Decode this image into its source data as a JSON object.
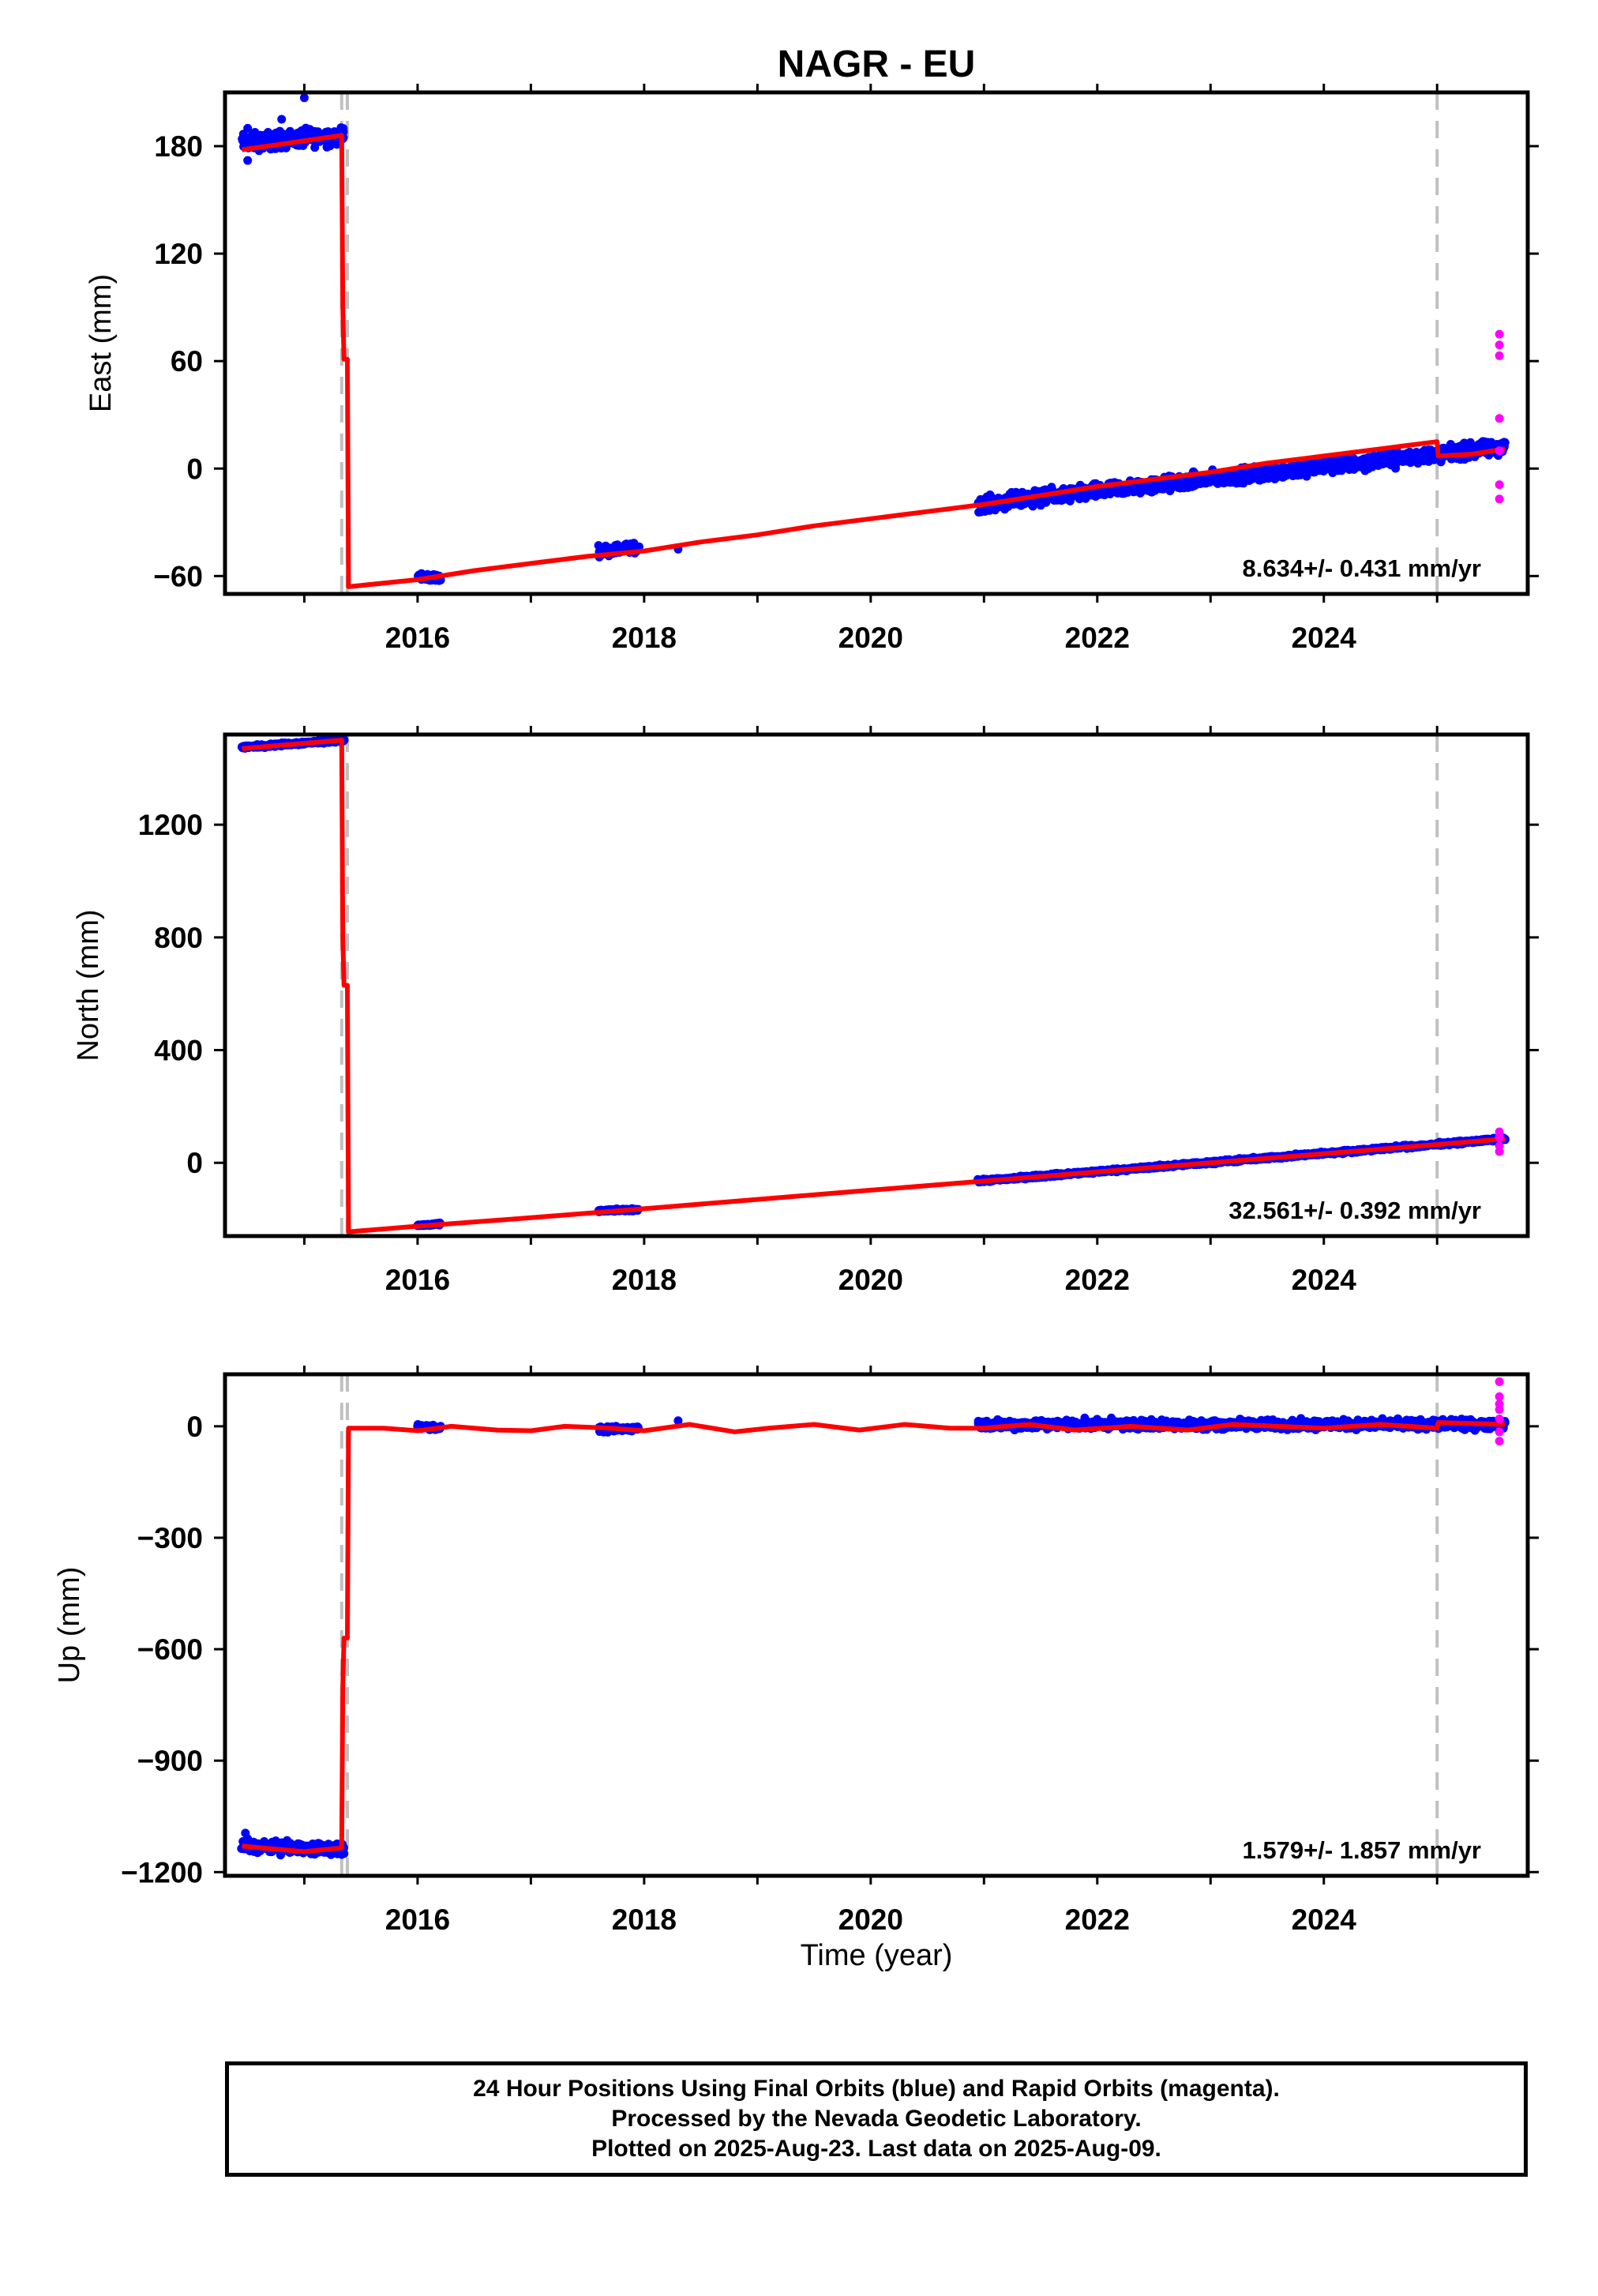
{
  "title": "NAGR - EU",
  "colors": {
    "final_orbits": "#0000ff",
    "rapid_orbits": "#ff00ff",
    "model": "#ff0000",
    "event_line": "#c0c0c0",
    "frame": "#000000"
  },
  "footer": {
    "line1": "24 Hour Positions Using Final Orbits (blue) and Rapid Orbits (magenta).",
    "line2": "Processed by the Nevada Geodetic Laboratory.",
    "line3": "Plotted on 2025-Aug-23. Last data on 2025-Aug-09."
  },
  "chart_data": [
    {
      "type": "scatter",
      "ylabel": "East (mm)",
      "xlim": [
        2014.3,
        2025.8
      ],
      "ylim": [
        -70,
        210
      ],
      "xticks": [
        2016,
        2018,
        2020,
        2022,
        2024
      ],
      "yticks": [
        -60,
        0,
        60,
        120,
        180
      ],
      "ytick_labels": [
        "−60",
        "0",
        "60",
        "120",
        "180"
      ],
      "rate_label": "8.634+/- 0.431 mm/yr",
      "event_lines": [
        2015.33,
        2015.38,
        2025.0
      ],
      "series": [
        {
          "style": "final_orbits",
          "clusters": [
            {
              "x": [
                2014.45,
                2015.35
              ],
              "y": [
                182,
                186
              ],
              "spread": 7
            },
            {
              "x": [
                2016.0,
                2016.2
              ],
              "y": [
                -60,
                -61
              ],
              "spread": 3
            },
            {
              "x": [
                2017.6,
                2017.95
              ],
              "y": [
                -46,
                -44
              ],
              "spread": 4
            },
            {
              "x": [
                2020.95,
                2025.6
              ],
              "y": [
                -20,
                12
              ],
              "spread": 6
            }
          ],
          "outliers": [
            {
              "x": 2014.5,
              "y": 190
            },
            {
              "x": 2014.5,
              "y": 172
            },
            {
              "x": 2015.0,
              "y": 207
            },
            {
              "x": 2014.8,
              "y": 195
            },
            {
              "x": 2018.3,
              "y": -45
            }
          ]
        },
        {
          "style": "rapid_orbits",
          "points": [
            {
              "x": 2025.55,
              "y": 75
            },
            {
              "x": 2025.55,
              "y": 69
            },
            {
              "x": 2025.55,
              "y": 63
            },
            {
              "x": 2025.55,
              "y": 28
            },
            {
              "x": 2025.55,
              "y": 10
            },
            {
              "x": 2025.55,
              "y": -9
            },
            {
              "x": 2025.55,
              "y": -17
            }
          ]
        },
        {
          "style": "model",
          "line": [
            [
              2014.45,
              178
            ],
            [
              2015.33,
              186
            ],
            [
              2015.34,
              90
            ],
            [
              2015.35,
              61
            ],
            [
              2015.38,
              61
            ],
            [
              2015.39,
              -66
            ],
            [
              2016.0,
              -62
            ],
            [
              2016.5,
              -57
            ],
            [
              2017.0,
              -53
            ],
            [
              2017.5,
              -49
            ],
            [
              2018.0,
              -46
            ],
            [
              2018.5,
              -41
            ],
            [
              2019.0,
              -37
            ],
            [
              2019.5,
              -32
            ],
            [
              2020.0,
              -28
            ],
            [
              2020.5,
              -24
            ],
            [
              2021.0,
              -20
            ],
            [
              2021.5,
              -15
            ],
            [
              2022.0,
              -10
            ],
            [
              2022.5,
              -6
            ],
            [
              2023.0,
              -2
            ],
            [
              2023.5,
              3
            ],
            [
              2024.0,
              7
            ],
            [
              2024.5,
              11
            ],
            [
              2025.0,
              15
            ],
            [
              2025.01,
              7
            ],
            [
              2025.3,
              8
            ],
            [
              2025.6,
              11
            ]
          ]
        }
      ]
    },
    {
      "type": "scatter",
      "ylabel": "North (mm)",
      "xlim": [
        2014.3,
        2025.8
      ],
      "ylim": [
        -260,
        1520
      ],
      "xticks": [
        2016,
        2018,
        2020,
        2022,
        2024
      ],
      "yticks": [
        0,
        400,
        800,
        1200
      ],
      "ytick_labels": [
        "0",
        "400",
        "800",
        "1200"
      ],
      "rate_label": "32.561+/- 0.392 mm/yr",
      "event_lines": [
        2015.33,
        2015.38,
        2025.0
      ],
      "series": [
        {
          "style": "final_orbits",
          "clusters": [
            {
              "x": [
                2014.45,
                2015.35
              ],
              "y": [
                1475,
                1500
              ],
              "spread": 8
            },
            {
              "x": [
                2016.0,
                2016.2
              ],
              "y": [
                -222,
                -218
              ],
              "spread": 6
            },
            {
              "x": [
                2017.6,
                2017.95
              ],
              "y": [
                -170,
                -166
              ],
              "spread": 6
            },
            {
              "x": [
                2020.95,
                2025.6
              ],
              "y": [
                -65,
                85
              ],
              "spread": 8
            }
          ],
          "outliers": []
        },
        {
          "style": "rapid_orbits",
          "points": [
            {
              "x": 2025.55,
              "y": 110
            },
            {
              "x": 2025.55,
              "y": 90
            },
            {
              "x": 2025.55,
              "y": 60
            },
            {
              "x": 2025.55,
              "y": 40
            }
          ]
        },
        {
          "style": "model",
          "line": [
            [
              2014.45,
              1470
            ],
            [
              2015.33,
              1500
            ],
            [
              2015.34,
              800
            ],
            [
              2015.35,
              630
            ],
            [
              2015.38,
              630
            ],
            [
              2015.39,
              -245
            ],
            [
              2016.0,
              -225
            ],
            [
              2017.0,
              -195
            ],
            [
              2018.0,
              -163
            ],
            [
              2019.0,
              -130
            ],
            [
              2020.0,
              -97
            ],
            [
              2021.0,
              -65
            ],
            [
              2022.0,
              -32
            ],
            [
              2023.0,
              0
            ],
            [
              2024.0,
              32
            ],
            [
              2025.0,
              65
            ],
            [
              2025.6,
              85
            ]
          ]
        }
      ]
    },
    {
      "type": "scatter",
      "ylabel": "Up (mm)",
      "xlim": [
        2014.3,
        2025.8
      ],
      "ylim": [
        -1210,
        140
      ],
      "xticks": [
        2016,
        2018,
        2020,
        2022,
        2024
      ],
      "yticks": [
        -1200,
        -900,
        -600,
        -300,
        0
      ],
      "ytick_labels": [
        "−1200",
        "−900",
        "−600",
        "−300",
        "0"
      ],
      "rate_label": "1.579+/- 1.857 mm/yr",
      "event_lines": [
        2015.33,
        2015.38,
        2025.0
      ],
      "series": [
        {
          "style": "final_orbits",
          "clusters": [
            {
              "x": [
                2014.45,
                2015.35
              ],
              "y": [
                -1130,
                -1140
              ],
              "spread": 22
            },
            {
              "x": [
                2016.0,
                2016.2
              ],
              "y": [
                0,
                -5
              ],
              "spread": 10
            },
            {
              "x": [
                2017.6,
                2017.95
              ],
              "y": [
                -10,
                -5
              ],
              "spread": 10
            },
            {
              "x": [
                2020.95,
                2025.6
              ],
              "y": [
                5,
                5
              ],
              "spread": 18
            }
          ],
          "outliers": [
            {
              "x": 2014.48,
              "y": -1095
            },
            {
              "x": 2014.5,
              "y": -1110
            },
            {
              "x": 2018.3,
              "y": 15
            }
          ]
        },
        {
          "style": "rapid_orbits",
          "points": [
            {
              "x": 2025.55,
              "y": 120
            },
            {
              "x": 2025.55,
              "y": 80
            },
            {
              "x": 2025.55,
              "y": 60
            },
            {
              "x": 2025.55,
              "y": 45
            },
            {
              "x": 2025.55,
              "y": 20
            },
            {
              "x": 2025.55,
              "y": -15
            },
            {
              "x": 2025.55,
              "y": -40
            }
          ]
        },
        {
          "style": "model",
          "line": [
            [
              2014.45,
              -1130
            ],
            [
              2015.0,
              -1145
            ],
            [
              2015.33,
              -1135
            ],
            [
              2015.34,
              -700
            ],
            [
              2015.35,
              -570
            ],
            [
              2015.38,
              -570
            ],
            [
              2015.39,
              -5
            ],
            [
              2015.7,
              -5
            ],
            [
              2016.0,
              -12
            ],
            [
              2016.3,
              0
            ],
            [
              2016.7,
              -10
            ],
            [
              2017.0,
              -12
            ],
            [
              2017.3,
              0
            ],
            [
              2017.7,
              -5
            ],
            [
              2018.0,
              -12
            ],
            [
              2018.4,
              5
            ],
            [
              2018.8,
              -15
            ],
            [
              2019.1,
              -5
            ],
            [
              2019.5,
              5
            ],
            [
              2019.9,
              -10
            ],
            [
              2020.3,
              5
            ],
            [
              2020.7,
              -5
            ],
            [
              2021.0,
              -5
            ],
            [
              2021.4,
              5
            ],
            [
              2021.8,
              -10
            ],
            [
              2022.3,
              0
            ],
            [
              2022.8,
              -10
            ],
            [
              2023.2,
              5
            ],
            [
              2023.6,
              0
            ],
            [
              2024.0,
              -5
            ],
            [
              2024.5,
              5
            ],
            [
              2025.0,
              -5
            ],
            [
              2025.01,
              10
            ],
            [
              2025.6,
              5
            ]
          ]
        }
      ]
    }
  ],
  "x_axis_label": "Time (year)"
}
